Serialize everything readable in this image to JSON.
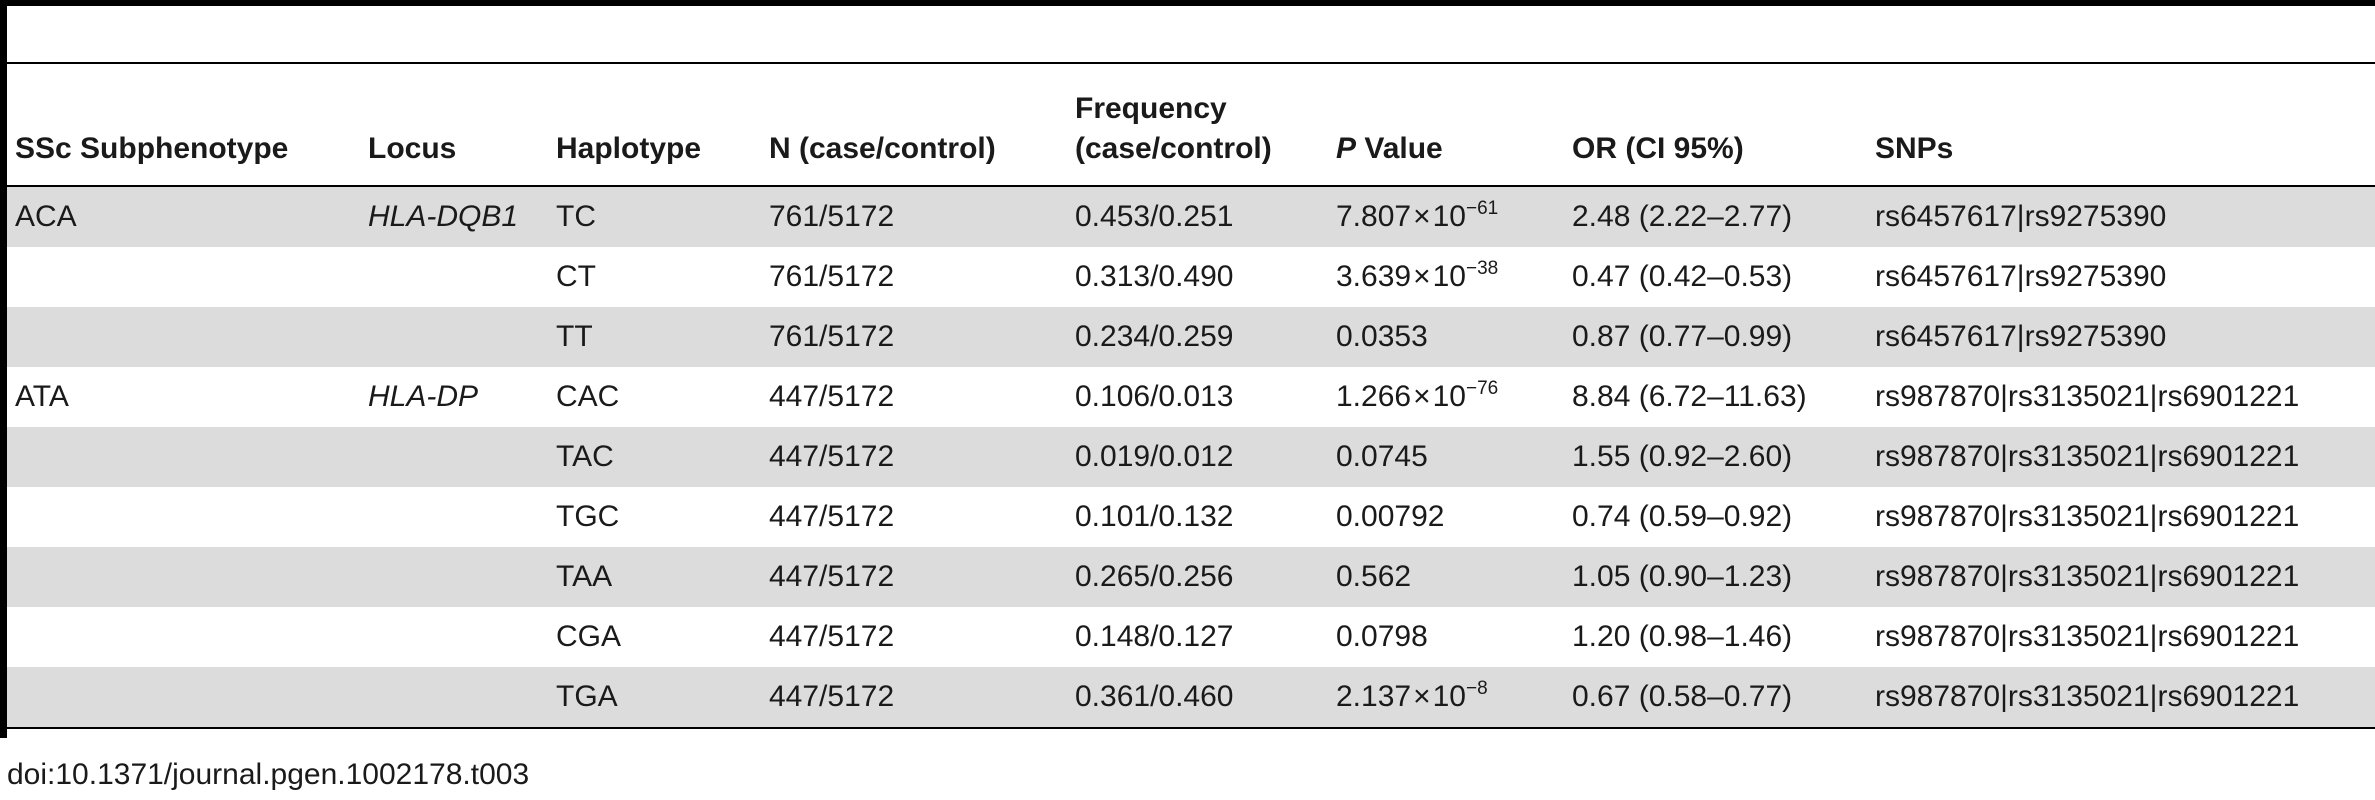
{
  "columns": {
    "subphenotype": "SSc Subphenotype",
    "locus": "Locus",
    "haplotype": "Haplotype",
    "n": "N (case/control)",
    "frequency_line1": "Frequency",
    "frequency_line2": "(case/control)",
    "p_italic": "P",
    "p_rest": " Value",
    "or": "OR (CI 95%)",
    "snps": "SNPs"
  },
  "rows": [
    {
      "subphenotype": "ACA",
      "locus": "HLA-DQB1",
      "haplotype": "TC",
      "n": "761/5172",
      "frequency": "0.453/0.251",
      "p_base": "7.807",
      "p_exp": "−61",
      "or": "2.48 (2.22–2.77)",
      "snps": "rs6457617|rs9275390"
    },
    {
      "subphenotype": "",
      "locus": "",
      "haplotype": "CT",
      "n": "761/5172",
      "frequency": "0.313/0.490",
      "p_base": "3.639",
      "p_exp": "−38",
      "or": "0.47 (0.42–0.53)",
      "snps": "rs6457617|rs9275390"
    },
    {
      "subphenotype": "",
      "locus": "",
      "haplotype": "TT",
      "n": "761/5172",
      "frequency": "0.234/0.259",
      "p_value": "0.0353",
      "or": "0.87 (0.77–0.99)",
      "snps": "rs6457617|rs9275390"
    },
    {
      "subphenotype": "ATA",
      "locus": "HLA-DP",
      "haplotype": "CAC",
      "n": "447/5172",
      "frequency": "0.106/0.013",
      "p_base": "1.266",
      "p_exp": "−76",
      "or": "8.84 (6.72–11.63)",
      "snps": "rs987870|rs3135021|rs6901221"
    },
    {
      "subphenotype": "",
      "locus": "",
      "haplotype": "TAC",
      "n": "447/5172",
      "frequency": "0.019/0.012",
      "p_value": "0.0745",
      "or": "1.55 (0.92–2.60)",
      "snps": "rs987870|rs3135021|rs6901221"
    },
    {
      "subphenotype": "",
      "locus": "",
      "haplotype": "TGC",
      "n": "447/5172",
      "frequency": "0.101/0.132",
      "p_value": "0.00792",
      "or": "0.74 (0.59–0.92)",
      "snps": "rs987870|rs3135021|rs6901221"
    },
    {
      "subphenotype": "",
      "locus": "",
      "haplotype": "TAA",
      "n": "447/5172",
      "frequency": "0.265/0.256",
      "p_value": "0.562",
      "or": "1.05 (0.90–1.23)",
      "snps": "rs987870|rs3135021|rs6901221"
    },
    {
      "subphenotype": "",
      "locus": "",
      "haplotype": "CGA",
      "n": "447/5172",
      "frequency": "0.148/0.127",
      "p_value": "0.0798",
      "or": "1.20 (0.98–1.46)",
      "snps": "rs987870|rs3135021|rs6901221"
    },
    {
      "subphenotype": "",
      "locus": "",
      "haplotype": "TGA",
      "n": "447/5172",
      "frequency": "0.361/0.460",
      "p_base": "2.137",
      "p_exp": "−8",
      "or": "0.67 (0.58–0.77)",
      "snps": "rs987870|rs3135021|rs6901221"
    }
  ],
  "sci": {
    "times": "×",
    "ten": "10"
  },
  "footer": {
    "doi": "doi:10.1371/journal.pgen.1002178.t003"
  }
}
